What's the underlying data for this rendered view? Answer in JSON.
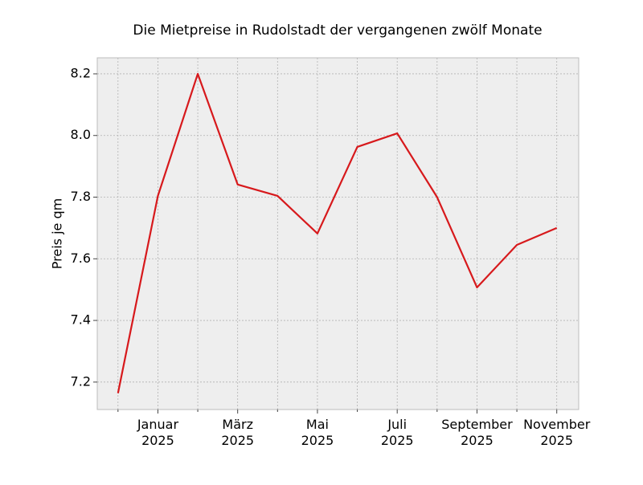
{
  "chart_data": {
    "type": "line",
    "title": "Die Mietpreise in Rudolstadt der vergangenen zwölf Monate",
    "ylabel": "Preis je qm",
    "categories": [
      null,
      "Januar\n2025",
      null,
      "März\n2025",
      null,
      "Mai\n2025",
      null,
      "Juli\n2025",
      null,
      "September\n2025",
      null,
      "November\n2025"
    ],
    "values": [
      7.164,
      7.804,
      8.2,
      7.841,
      7.804,
      7.682,
      7.963,
      8.007,
      7.8,
      7.507,
      7.645,
      7.7
    ],
    "color": "#d7191c",
    "ylim": [
      7.111,
      8.252
    ],
    "yticks": [
      7.2,
      7.4,
      7.6,
      7.8,
      {
        "value": 8,
        "label": "8.0"
      },
      8.2
    ],
    "grid": true
  }
}
